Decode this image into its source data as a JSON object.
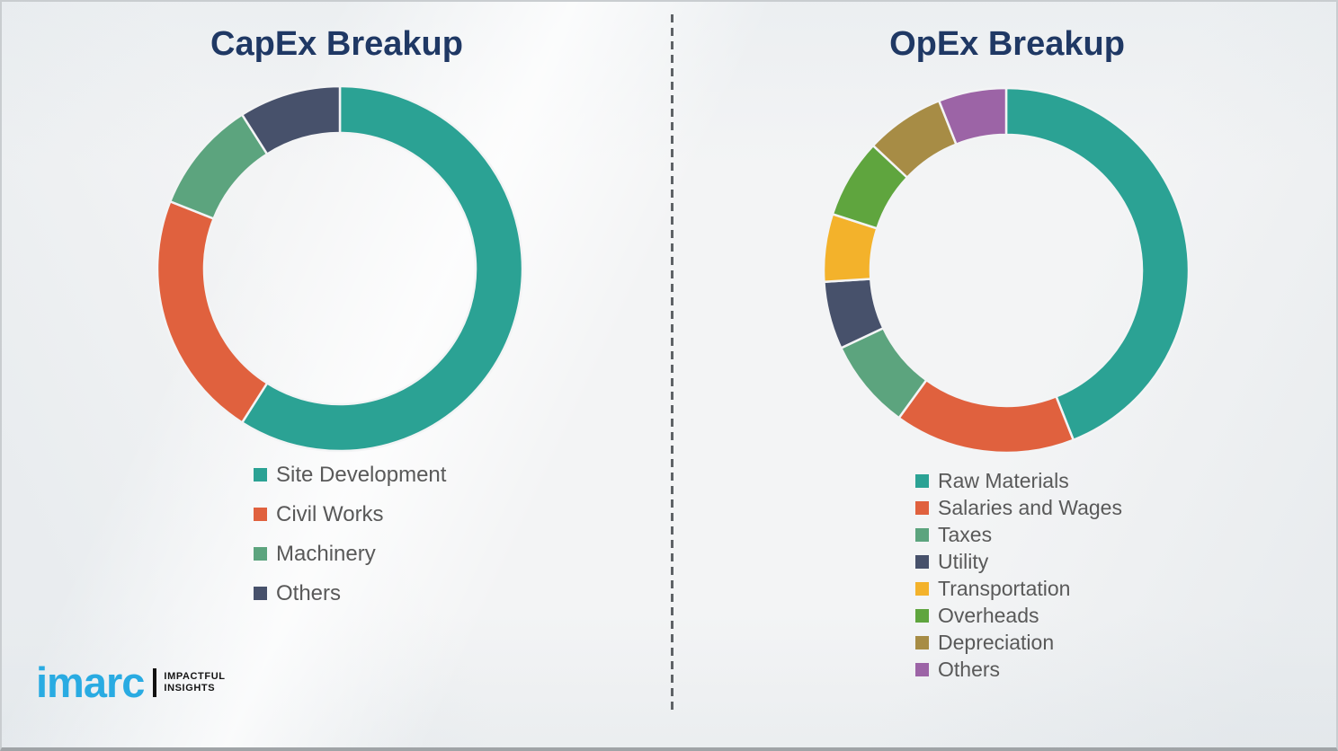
{
  "page": {
    "background_color": "#f3f4f5",
    "divider_style": "vertical-dashed",
    "divider_color": "#5e6266"
  },
  "chart_data": [
    {
      "type": "pie",
      "subtype": "donut",
      "title": "CapEx Breakup",
      "labels": [
        "Site Development",
        "Civil Works",
        "Machinery",
        "Others"
      ],
      "values": [
        59,
        22,
        10,
        9
      ],
      "values_note": "percent, estimated from arc angles (no data labels shown)",
      "colors": [
        "#2BA294",
        "#E0613E",
        "#5CA47E",
        "#47516B"
      ],
      "start_angle_deg": 0,
      "direction": "clockwise",
      "legend_position": "below-left",
      "data_labels_shown": false
    },
    {
      "type": "pie",
      "subtype": "donut",
      "title": "OpEx Breakup",
      "labels": [
        "Raw Materials",
        "Salaries and Wages",
        "Taxes",
        "Utility",
        "Transportation",
        "Overheads",
        "Depreciation",
        "Others"
      ],
      "values": [
        44,
        16,
        8,
        6,
        6,
        7,
        7,
        6
      ],
      "values_note": "percent, estimated from arc angles (no data labels shown)",
      "colors": [
        "#2BA294",
        "#E0613E",
        "#5CA47E",
        "#47516B",
        "#F3B22B",
        "#5FA53E",
        "#A78C45",
        "#9C64A6"
      ],
      "start_angle_deg": 0,
      "direction": "clockwise",
      "legend_position": "below-left",
      "data_labels_shown": false
    }
  ],
  "titles_color": "#1f3864",
  "legend_text_color": "#595959",
  "logo": {
    "brand": "imarc",
    "brand_color": "#29abe2",
    "tagline_line1": "IMPACTFUL",
    "tagline_line2": "INSIGHTS"
  }
}
